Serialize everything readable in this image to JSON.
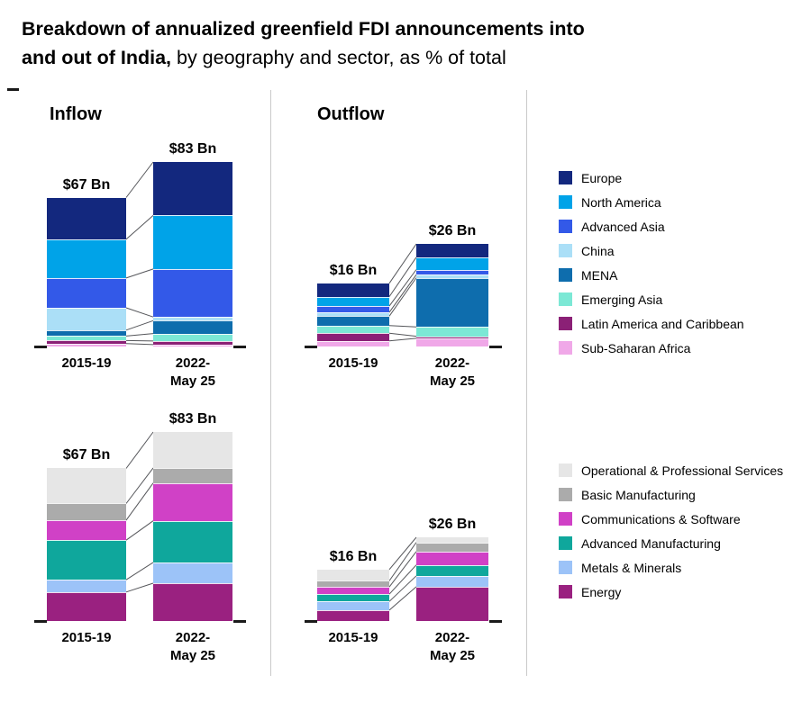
{
  "title": {
    "line1": "Breakdown of annualized greenfield FDI announcements into",
    "line2_bold": "and out of India,",
    "line2_regular": " by geography and sector, as % of total"
  },
  "sections": {
    "inflow": "Inflow",
    "outflow": "Outflow"
  },
  "legends": {
    "geography": [
      {
        "label": "Europe",
        "color": "#13287E"
      },
      {
        "label": "North America",
        "color": "#00A3E8"
      },
      {
        "label": "Advanced Asia",
        "color": "#3359E8"
      },
      {
        "label": "China",
        "color": "#ABDFF7"
      },
      {
        "label": "MENA",
        "color": "#0E6DAD"
      },
      {
        "label": "Emerging Asia",
        "color": "#7CE8D5"
      },
      {
        "label": "Latin America and Caribbean",
        "color": "#8B2076"
      },
      {
        "label": "Sub-Saharan Africa",
        "color": "#F0A8E8"
      }
    ],
    "sector": [
      {
        "label": "Operational & Professional Services",
        "color": "#E6E6E6"
      },
      {
        "label": "Basic Manufacturing",
        "color": "#ABABAB"
      },
      {
        "label": "Communications & Software",
        "color": "#D041C6"
      },
      {
        "label": "Advanced Manufacturing",
        "color": "#0FA79C"
      },
      {
        "label": "Metals & Minerals",
        "color": "#9CC3F8"
      },
      {
        "label": "Energy",
        "color": "#9A2180"
      }
    ]
  },
  "chart_data": [
    {
      "id": "inflow-geography",
      "type": "bar",
      "stacked": true,
      "section": "Inflow",
      "dimension": "geography",
      "unit": "% of total",
      "categories": [
        "2015-19",
        "2022-May 25"
      ],
      "category_lines": [
        [
          "2015-19"
        ],
        [
          "2022-",
          "May 25"
        ]
      ],
      "totals": [
        67,
        83
      ],
      "total_labels": [
        "$67 Bn",
        "$83 Bn"
      ],
      "series": [
        {
          "name": "Europe",
          "values": [
            28,
            29
          ]
        },
        {
          "name": "North America",
          "values": [
            26,
            29
          ]
        },
        {
          "name": "Advanced Asia",
          "values": [
            20,
            26
          ]
        },
        {
          "name": "China",
          "values": [
            15,
            2
          ]
        },
        {
          "name": "MENA",
          "values": [
            4,
            7
          ]
        },
        {
          "name": "Emerging Asia",
          "values": [
            3,
            4
          ]
        },
        {
          "name": "Latin America and Caribbean",
          "values": [
            2,
            2
          ]
        },
        {
          "name": "Sub-Saharan Africa",
          "values": [
            2,
            1
          ]
        }
      ]
    },
    {
      "id": "outflow-geography",
      "type": "bar",
      "stacked": true,
      "section": "Outflow",
      "dimension": "geography",
      "unit": "% of total",
      "categories": [
        "2015-19",
        "2022-May 25"
      ],
      "category_lines": [
        [
          "2015-19"
        ],
        [
          "2022-",
          "May 25"
        ]
      ],
      "totals": [
        16,
        26
      ],
      "total_labels": [
        "$16 Bn",
        "$26 Bn"
      ],
      "series": [
        {
          "name": "Europe",
          "values": [
            21,
            13
          ]
        },
        {
          "name": "North America",
          "values": [
            15,
            12
          ]
        },
        {
          "name": "Advanced Asia",
          "values": [
            10,
            5
          ]
        },
        {
          "name": "China",
          "values": [
            6,
            3
          ]
        },
        {
          "name": "MENA",
          "values": [
            15,
            48
          ]
        },
        {
          "name": "Emerging Asia",
          "values": [
            12,
            9
          ]
        },
        {
          "name": "Latin America and Caribbean",
          "values": [
            12,
            2
          ]
        },
        {
          "name": "Sub-Saharan Africa",
          "values": [
            9,
            8
          ]
        }
      ]
    },
    {
      "id": "inflow-sector",
      "type": "bar",
      "stacked": true,
      "section": "Inflow",
      "dimension": "sector",
      "unit": "% of total",
      "categories": [
        "2015-19",
        "2022-May 25"
      ],
      "category_lines": [
        [
          "2015-19"
        ],
        [
          "2022-",
          "May 25"
        ]
      ],
      "totals": [
        67,
        83
      ],
      "total_labels": [
        "$67 Bn",
        "$83 Bn"
      ],
      "series": [
        {
          "name": "Operational & Professional Services",
          "values": [
            23,
            19
          ]
        },
        {
          "name": "Basic Manufacturing",
          "values": [
            11,
            8
          ]
        },
        {
          "name": "Communications & Software",
          "values": [
            13,
            20
          ]
        },
        {
          "name": "Advanced Manufacturing",
          "values": [
            26,
            22
          ]
        },
        {
          "name": "Metals & Minerals",
          "values": [
            8,
            11
          ]
        },
        {
          "name": "Energy",
          "values": [
            19,
            20
          ]
        }
      ]
    },
    {
      "id": "outflow-sector",
      "type": "bar",
      "stacked": true,
      "section": "Outflow",
      "dimension": "sector",
      "unit": "% of total",
      "categories": [
        "2015-19",
        "2022-May 25"
      ],
      "category_lines": [
        [
          "2015-19"
        ],
        [
          "2022-",
          "May 25"
        ]
      ],
      "totals": [
        16,
        26
      ],
      "total_labels": [
        "$16 Bn",
        "$26 Bn"
      ],
      "series": [
        {
          "name": "Operational & Professional Services",
          "values": [
            22,
            6
          ]
        },
        {
          "name": "Basic Manufacturing",
          "values": [
            12,
            11
          ]
        },
        {
          "name": "Communications & Software",
          "values": [
            14,
            16
          ]
        },
        {
          "name": "Advanced Manufacturing",
          "values": [
            14,
            13
          ]
        },
        {
          "name": "Metals & Minerals",
          "values": [
            17,
            13
          ]
        },
        {
          "name": "Energy",
          "values": [
            21,
            41
          ]
        }
      ]
    }
  ]
}
